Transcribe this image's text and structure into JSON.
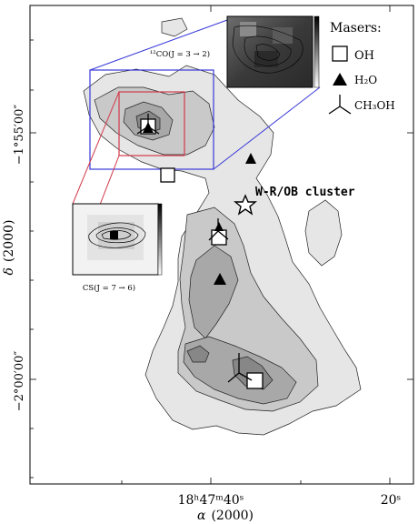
{
  "figure": {
    "y_axis": {
      "label_parts": [
        "δ",
        "(2000)"
      ],
      "ticks": [
        "−1°55′00″",
        "−2°00′00″"
      ]
    },
    "x_axis": {
      "label_parts": [
        "α",
        "(2000)"
      ],
      "ticks": [
        "18ʰ47ᵐ40ˢ",
        "20ˢ"
      ]
    },
    "legend": {
      "title": "Masers:",
      "items": [
        {
          "marker": "open-square",
          "label": "OH"
        },
        {
          "marker": "filled-triangle",
          "label": "H₂O"
        },
        {
          "marker": "three-pronged",
          "label": "CH₃OH"
        }
      ]
    },
    "annotations": {
      "cluster": "W-R/OB cluster",
      "inset_top": "¹²CO(J = 3 → 2)",
      "inset_left": "CS(J = 7 → 6)"
    },
    "colors": {
      "frame": "#000000",
      "blue_box": "#3a3ad8",
      "red_box": "#d23a4a",
      "contour_1": "#e6e6e6",
      "contour_2": "#c9c9c9",
      "contour_3": "#a8a8a8",
      "contour_4": "#878787"
    }
  }
}
